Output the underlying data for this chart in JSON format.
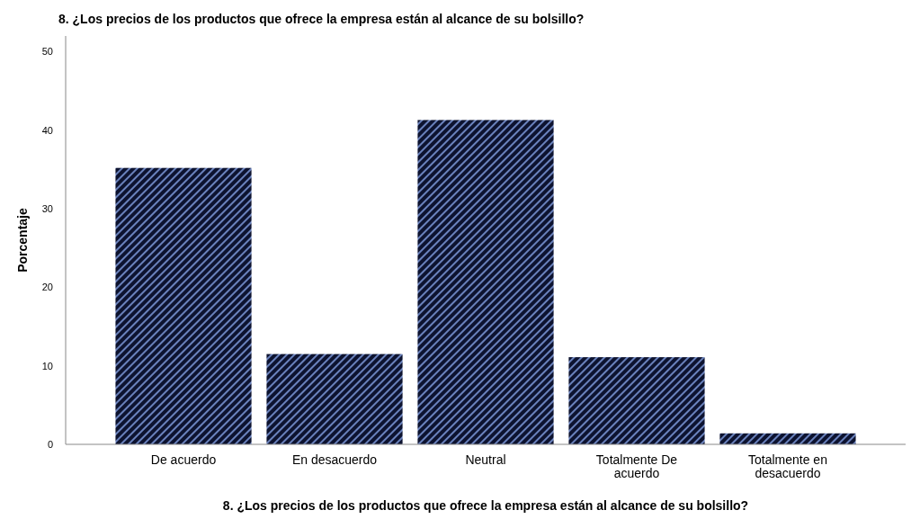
{
  "chart_data": {
    "type": "bar",
    "title": "8. ¿Los precios de los productos que ofrece la empresa están al alcance de su bolsillo?",
    "xlabel": "8. ¿Los precios de los productos que ofrece la empresa están al alcance de su bolsillo?",
    "ylabel": "Porcentaje",
    "categories": [
      "De acuerdo",
      "En desacuerdo",
      "Neutral",
      "Totalmente De acuerdo",
      "Totalmente en desacuerdo"
    ],
    "values": [
      35.2,
      11.5,
      41.3,
      11.1,
      1.4
    ],
    "color": "#0d1330",
    "ylim": [
      0,
      52
    ],
    "yticks": [
      0,
      10,
      20,
      30,
      40,
      50
    ],
    "grid": false
  }
}
